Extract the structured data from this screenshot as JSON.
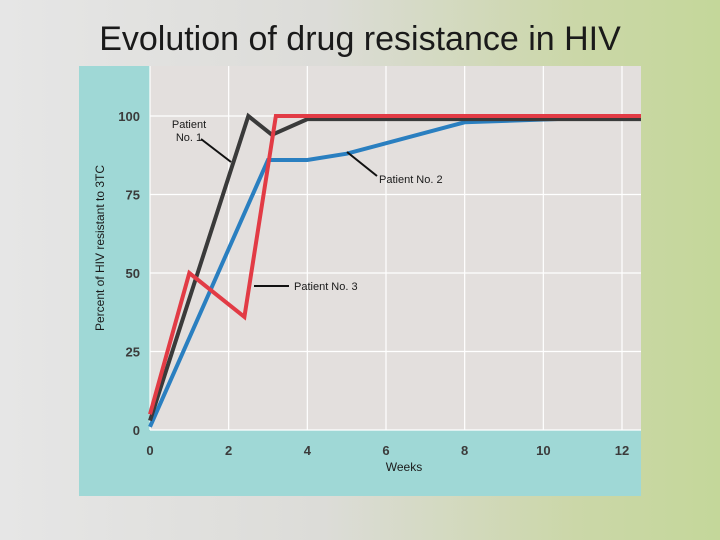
{
  "slide": {
    "title": "Evolution of drug resistance in HIV"
  },
  "chart_data": {
    "type": "line",
    "title": "Evolution of drug resistance in HIV",
    "xlabel": "Weeks",
    "ylabel": "Percent of HIV resistant to 3TC",
    "xlim": [
      0,
      12.5
    ],
    "ylim": [
      0,
      100
    ],
    "xticks": [
      0,
      2,
      4,
      6,
      8,
      10,
      12
    ],
    "yticks": [
      0,
      25,
      50,
      75,
      100
    ],
    "grid": true,
    "colors": {
      "patient1": "#3a3a3a",
      "patient2": "#2a7fc0",
      "patient3": "#e23b45",
      "plot_bg": "#e3dfdd",
      "frame_bg": "#9fd8d6",
      "grid": "#ffffff"
    },
    "series": [
      {
        "name": "Patient No. 1",
        "label": "Patient\nNo. 1",
        "x": [
          0,
          2.5,
          3.1,
          4,
          12.5
        ],
        "y": [
          3,
          100,
          94,
          99,
          99
        ]
      },
      {
        "name": "Patient No. 2",
        "label": "Patient No. 2",
        "x": [
          0,
          3,
          4,
          5,
          8,
          12.5
        ],
        "y": [
          1,
          86,
          86,
          88,
          98,
          100
        ]
      },
      {
        "name": "Patient No. 3",
        "label": "Patient No. 3",
        "x": [
          0,
          1,
          2.4,
          3.2,
          12.5
        ],
        "y": [
          5,
          50,
          36,
          100,
          100
        ]
      }
    ]
  }
}
